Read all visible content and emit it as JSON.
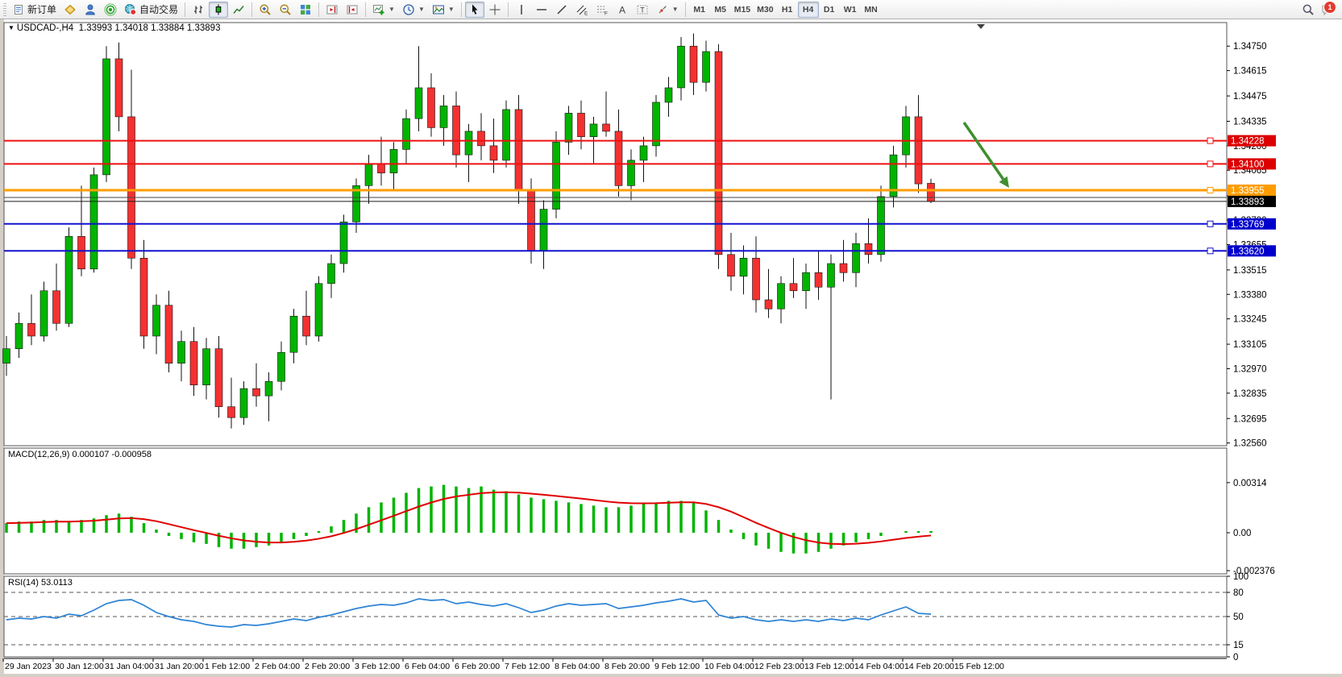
{
  "toolbar": {
    "new_order": "新订单",
    "auto_trading": "自动交易",
    "timeframes": [
      "M1",
      "M5",
      "M15",
      "M30",
      "H1",
      "H4",
      "D1",
      "W1",
      "MN"
    ],
    "active_timeframe": "H4",
    "notification_count": "1"
  },
  "chart": {
    "symbol_title": "USDCAD-,H4",
    "ohlc_text": "1.33993 1.34018 1.33884 1.33893",
    "macd_label": "MACD(12,26,9) 0.000107 -0.000958",
    "rsi_label": "RSI(14) 53.0113"
  },
  "chart_data": {
    "type": "candlestick",
    "symbol": "USDCAD",
    "timeframe": "H4",
    "last_ohlc": {
      "open": 1.33993,
      "high": 1.34018,
      "low": 1.33884,
      "close": 1.33893
    },
    "up_color": "#00b400",
    "down_color": "#f43131",
    "price_axis_ticks": [
      "1.34750",
      "1.34615",
      "1.34475",
      "1.34335",
      "1.34200",
      "1.34065",
      "1.33925",
      "1.33790",
      "1.33655",
      "1.33515",
      "1.33380",
      "1.33245",
      "1.33105",
      "1.32970",
      "1.32835",
      "1.32695",
      "1.32560"
    ],
    "horizontal_lines": [
      {
        "price": 1.34228,
        "color": "#ee1111",
        "width": 2,
        "badge": "1.34228",
        "badge_bg": "#dd0000"
      },
      {
        "price": 1.341,
        "color": "#ee1111",
        "width": 2,
        "badge": "1.34100",
        "badge_bg": "#dd0000"
      },
      {
        "price": 1.33955,
        "color": "#ff9d00",
        "width": 3,
        "badge": "1.33955",
        "badge_bg": "#ff9d00"
      },
      {
        "price": 1.33915,
        "color": "#454545",
        "width": 1
      },
      {
        "price": 1.33893,
        "color": "#1a1a1a",
        "width": 1,
        "badge": "1.33893",
        "badge_bg": "#000000"
      },
      {
        "price": 1.33769,
        "color": "#1212cf",
        "width": 2,
        "badge": "1.33769",
        "badge_bg": "#0000cc"
      },
      {
        "price": 1.3362,
        "color": "#1212cf",
        "width": 2,
        "badge": "1.33620",
        "badge_bg": "#0000cc"
      }
    ],
    "candles": [
      [
        1.33,
        1.3315,
        1.3293,
        1.3308
      ],
      [
        1.3308,
        1.3328,
        1.3303,
        1.3322
      ],
      [
        1.3322,
        1.3338,
        1.331,
        1.3315
      ],
      [
        1.3315,
        1.3345,
        1.3312,
        1.334
      ],
      [
        1.334,
        1.3355,
        1.3318,
        1.3322
      ],
      [
        1.3322,
        1.3375,
        1.332,
        1.337
      ],
      [
        1.337,
        1.3398,
        1.3348,
        1.3352
      ],
      [
        1.3352,
        1.3408,
        1.335,
        1.3404
      ],
      [
        1.3404,
        1.3475,
        1.34,
        1.3468
      ],
      [
        1.3468,
        1.3477,
        1.3428,
        1.3436
      ],
      [
        1.3436,
        1.3462,
        1.3352,
        1.3358
      ],
      [
        1.3358,
        1.3368,
        1.3308,
        1.3315
      ],
      [
        1.3315,
        1.3338,
        1.3305,
        1.3332
      ],
      [
        1.3332,
        1.334,
        1.3295,
        1.33
      ],
      [
        1.33,
        1.3318,
        1.329,
        1.3312
      ],
      [
        1.3312,
        1.332,
        1.3282,
        1.3288
      ],
      [
        1.3288,
        1.3314,
        1.328,
        1.3308
      ],
      [
        1.3308,
        1.3315,
        1.327,
        1.3276
      ],
      [
        1.3276,
        1.3292,
        1.3264,
        1.327
      ],
      [
        1.327,
        1.329,
        1.3266,
        1.3286
      ],
      [
        1.3286,
        1.33,
        1.3276,
        1.3282
      ],
      [
        1.3282,
        1.3295,
        1.3268,
        1.329
      ],
      [
        1.329,
        1.3312,
        1.3285,
        1.3306
      ],
      [
        1.3306,
        1.333,
        1.33,
        1.3326
      ],
      [
        1.3326,
        1.334,
        1.331,
        1.3315
      ],
      [
        1.3315,
        1.3348,
        1.3312,
        1.3344
      ],
      [
        1.3344,
        1.336,
        1.3336,
        1.3355
      ],
      [
        1.3355,
        1.3382,
        1.335,
        1.3378
      ],
      [
        1.3378,
        1.3402,
        1.3372,
        1.3398
      ],
      [
        1.3398,
        1.3415,
        1.3388,
        1.341
      ],
      [
        1.341,
        1.3425,
        1.3398,
        1.3405
      ],
      [
        1.3405,
        1.3422,
        1.3395,
        1.3418
      ],
      [
        1.3418,
        1.344,
        1.341,
        1.3435
      ],
      [
        1.3435,
        1.3475,
        1.3428,
        1.3452
      ],
      [
        1.3452,
        1.346,
        1.3425,
        1.343
      ],
      [
        1.343,
        1.3448,
        1.342,
        1.3442
      ],
      [
        1.3442,
        1.345,
        1.3408,
        1.3415
      ],
      [
        1.3415,
        1.3432,
        1.34,
        1.3428
      ],
      [
        1.3428,
        1.3438,
        1.3412,
        1.342
      ],
      [
        1.342,
        1.3435,
        1.3405,
        1.3412
      ],
      [
        1.3412,
        1.3445,
        1.3408,
        1.344
      ],
      [
        1.344,
        1.3448,
        1.3388,
        1.3395
      ],
      [
        1.3395,
        1.3402,
        1.3355,
        1.3362
      ],
      [
        1.3362,
        1.339,
        1.3352,
        1.3385
      ],
      [
        1.3385,
        1.3428,
        1.338,
        1.3422
      ],
      [
        1.3422,
        1.3442,
        1.3415,
        1.3438
      ],
      [
        1.3438,
        1.3445,
        1.3418,
        1.3425
      ],
      [
        1.3425,
        1.3436,
        1.341,
        1.3432
      ],
      [
        1.3432,
        1.345,
        1.3425,
        1.3428
      ],
      [
        1.3428,
        1.344,
        1.3392,
        1.3398
      ],
      [
        1.3398,
        1.3418,
        1.339,
        1.3412
      ],
      [
        1.3412,
        1.3425,
        1.34,
        1.342
      ],
      [
        1.342,
        1.3448,
        1.3414,
        1.3444
      ],
      [
        1.3444,
        1.3458,
        1.3436,
        1.3452
      ],
      [
        1.3452,
        1.348,
        1.3445,
        1.3475
      ],
      [
        1.3475,
        1.3482,
        1.3448,
        1.3455
      ],
      [
        1.3455,
        1.3478,
        1.345,
        1.3472
      ],
      [
        1.3472,
        1.3476,
        1.3352,
        1.336
      ],
      [
        1.336,
        1.3372,
        1.334,
        1.3348
      ],
      [
        1.3348,
        1.3365,
        1.3338,
        1.3358
      ],
      [
        1.3358,
        1.337,
        1.3328,
        1.3335
      ],
      [
        1.3335,
        1.3352,
        1.3325,
        1.333
      ],
      [
        1.333,
        1.3348,
        1.3322,
        1.3344
      ],
      [
        1.3344,
        1.3358,
        1.3336,
        1.334
      ],
      [
        1.334,
        1.3355,
        1.333,
        1.335
      ],
      [
        1.335,
        1.3362,
        1.3335,
        1.3342
      ],
      [
        1.3342,
        1.336,
        1.328,
        1.3355
      ],
      [
        1.3355,
        1.3368,
        1.3345,
        1.335
      ],
      [
        1.335,
        1.3372,
        1.3342,
        1.3366
      ],
      [
        1.3366,
        1.338,
        1.3355,
        1.336
      ],
      [
        1.336,
        1.3398,
        1.3356,
        1.3392
      ],
      [
        1.3392,
        1.342,
        1.3386,
        1.3415
      ],
      [
        1.3415,
        1.3442,
        1.3408,
        1.3436
      ],
      [
        1.3436,
        1.3448,
        1.3394,
        1.3399
      ],
      [
        1.33993,
        1.34018,
        1.33884,
        1.33893
      ]
    ],
    "macd": {
      "label": "MACD(12,26,9)",
      "main_value": 0.000107,
      "signal_value": -0.000958,
      "bar_color": "#00b400",
      "signal_color": "#e00000",
      "axis_ticks": [
        "0.00314",
        "0.00",
        "-0.002376"
      ],
      "histogram": [
        0.0006,
        0.0007,
        0.0007,
        0.0008,
        0.0008,
        0.0007,
        0.0008,
        0.0009,
        0.0011,
        0.0012,
        0.001,
        0.0006,
        0.0002,
        -0.0002,
        -0.0004,
        -0.0006,
        -0.0007,
        -0.0009,
        -0.001,
        -0.001,
        -0.0009,
        -0.0008,
        -0.0006,
        -0.0004,
        -0.0002,
        0.0001,
        0.0004,
        0.0008,
        0.0012,
        0.0016,
        0.0019,
        0.0022,
        0.0025,
        0.0028,
        0.0029,
        0.003,
        0.0029,
        0.0028,
        0.0029,
        0.0027,
        0.0026,
        0.0024,
        0.0022,
        0.0021,
        0.002,
        0.0019,
        0.0018,
        0.0017,
        0.0016,
        0.0016,
        0.0017,
        0.0018,
        0.0019,
        0.002,
        0.002,
        0.0019,
        0.0014,
        0.0008,
        0.0002,
        -0.0004,
        -0.0008,
        -0.001,
        -0.0012,
        -0.0013,
        -0.0013,
        -0.0012,
        -0.001,
        -0.0008,
        -0.0006,
        -0.0004,
        -0.0002,
        0.0,
        0.0001,
        0.0001,
        0.000107
      ]
    },
    "rsi": {
      "label": "RSI(14)",
      "value": 53.0113,
      "line_color": "#2d83d5",
      "levels": [
        80,
        50,
        15
      ],
      "axis_ticks": [
        "100",
        "80",
        "50",
        "15",
        "0"
      ],
      "series": [
        46,
        48,
        47,
        50,
        48,
        53,
        51,
        58,
        66,
        70,
        71,
        64,
        55,
        50,
        46,
        44,
        40,
        38,
        37,
        40,
        39,
        41,
        44,
        47,
        45,
        49,
        52,
        56,
        60,
        63,
        65,
        64,
        67,
        72,
        70,
        71,
        66,
        68,
        65,
        63,
        66,
        61,
        55,
        58,
        63,
        66,
        64,
        65,
        66,
        60,
        62,
        64,
        67,
        69,
        72,
        68,
        70,
        52,
        48,
        50,
        46,
        44,
        46,
        44,
        46,
        44,
        47,
        45,
        48,
        46,
        52,
        57,
        62,
        54,
        53
      ]
    },
    "dates": [
      "29 Jan 2023",
      "30 Jan 12:00",
      "31 Jan 04:00",
      "31 Jan 20:00",
      "1 Feb 12:00",
      "2 Feb 04:00",
      "2 Feb 20:00",
      "3 Feb 12:00",
      "6 Feb 04:00",
      "6 Feb 20:00",
      "7 Feb 12:00",
      "8 Feb 04:00",
      "8 Feb 20:00",
      "9 Feb 12:00",
      "10 Feb 04:00",
      "12 Feb 23:00",
      "13 Feb 12:00",
      "14 Feb 04:00",
      "14 Feb 20:00",
      "15 Feb 12:00"
    ],
    "annotation_arrow": {
      "color": "#3f8f2f",
      "direction": "down-right"
    }
  }
}
